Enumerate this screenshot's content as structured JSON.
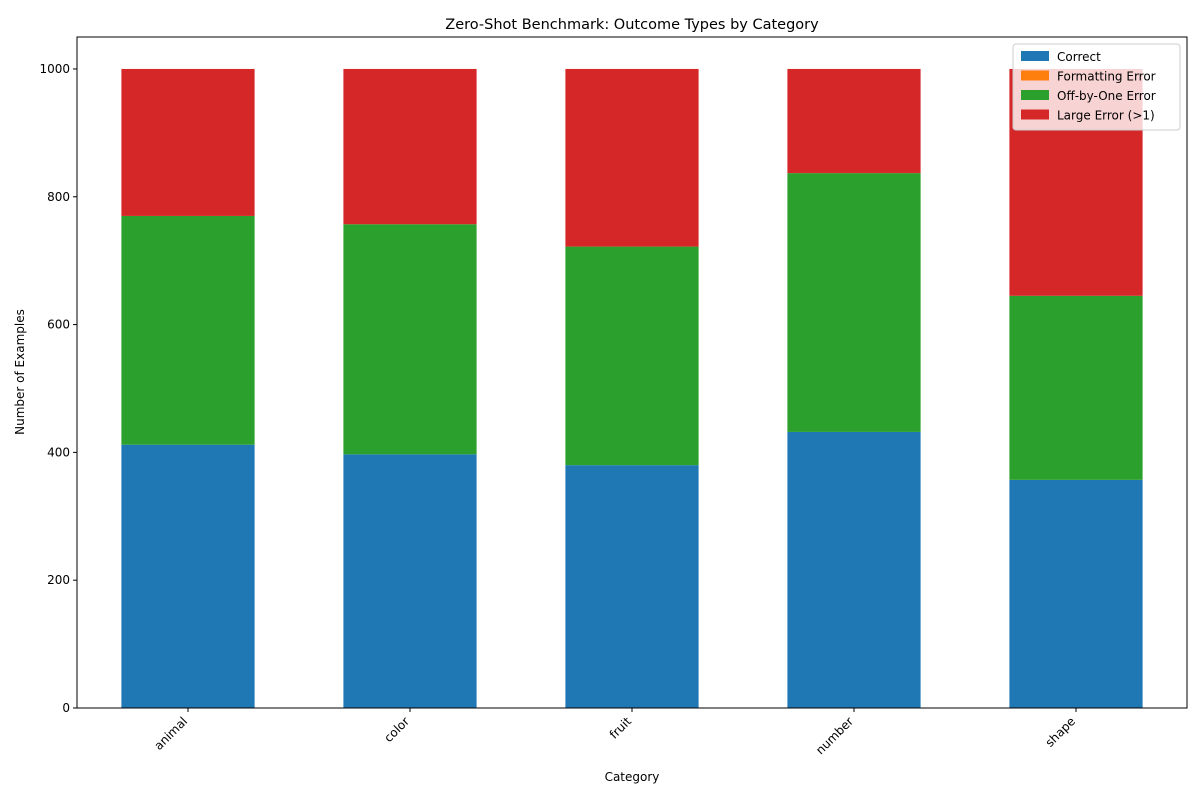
{
  "chart_data": {
    "type": "bar",
    "stacked": true,
    "title": "Zero-Shot Benchmark: Outcome Types by Category",
    "xlabel": "Category",
    "ylabel": "Number of Examples",
    "ylim": [
      0,
      1050
    ],
    "yticks": [
      0,
      200,
      400,
      600,
      800,
      1000
    ],
    "grid": false,
    "legend_position": "top-right",
    "categories": [
      "animal",
      "color",
      "fruit",
      "number",
      "shape"
    ],
    "series": [
      {
        "name": "Correct",
        "color": "#1f77b4",
        "values": [
          412,
          397,
          380,
          432,
          357
        ]
      },
      {
        "name": "Formatting Error",
        "color": "#ff7f0e",
        "values": [
          0,
          0,
          0,
          0,
          0
        ]
      },
      {
        "name": "Off-by-One Error",
        "color": "#2ca02c",
        "values": [
          358,
          360,
          342,
          405,
          288
        ]
      },
      {
        "name": "Large Error (>1)",
        "color": "#d62728",
        "values": [
          230,
          243,
          278,
          163,
          355
        ]
      }
    ]
  }
}
